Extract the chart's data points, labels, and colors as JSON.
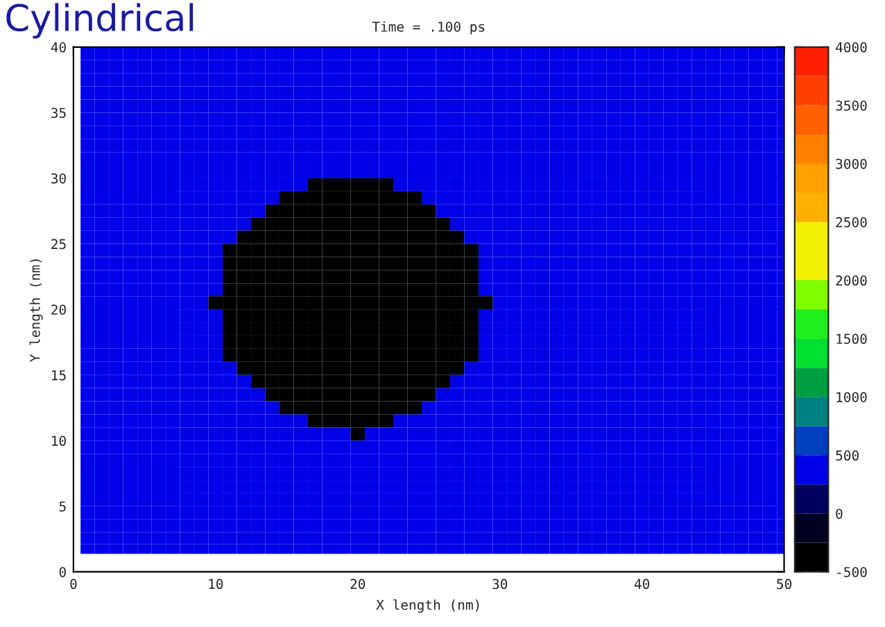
{
  "chart_data": {
    "type": "heatmap",
    "title": "Time = .100 ps",
    "xlabel": "X length (nm)",
    "ylabel": "Y length (nm)",
    "annotations": [
      "Cylindrical"
    ],
    "xlim": [
      0,
      50
    ],
    "ylim": [
      0,
      40
    ],
    "xticks": [
      0,
      10,
      20,
      30,
      40,
      50
    ],
    "yticks": [
      0,
      5,
      10,
      15,
      20,
      25,
      30,
      35,
      40
    ],
    "clim": [
      -500,
      4000
    ],
    "cticks": [
      -500,
      0,
      500,
      1000,
      1500,
      2000,
      2500,
      3000,
      3500,
      4000
    ],
    "colors": [
      "#000000",
      "#000020",
      "#000060",
      "#0000e8",
      "#0040c0",
      "#008080",
      "#00a040",
      "#00e030",
      "#20f020",
      "#80ff00",
      "#f0f000",
      "#f0f000",
      "#ffb000",
      "#ffa000",
      "#ff8000",
      "#ff6000",
      "#ff4000",
      "#ff2000"
    ],
    "x": [
      1,
      2,
      3,
      4,
      5,
      6,
      7,
      8,
      9,
      10,
      11,
      12,
      13,
      14,
      15,
      16,
      17,
      18,
      19,
      20,
      21,
      22,
      23,
      24,
      25,
      26,
      27,
      28,
      29,
      30,
      31,
      32,
      33,
      34,
      35,
      36,
      37,
      38,
      39,
      40,
      41,
      42,
      43,
      44,
      45,
      46,
      47,
      48,
      49,
      50
    ],
    "y": [
      39.5,
      38.5,
      37.5,
      36.5,
      35.5,
      34.5,
      33.5,
      32.5,
      31.5,
      30.5,
      29.5,
      28.5,
      27.5,
      26.5,
      25.5,
      24.5,
      23.5,
      22.5,
      21.5,
      20.5,
      19.5,
      18.5,
      17.5,
      16.5,
      15.5,
      14.5,
      13.5,
      12.5,
      11.5,
      10.5,
      9.5,
      8.5,
      7.5,
      6.5,
      5.5,
      4.5,
      3.5,
      2.5,
      1.75
    ],
    "cells": [
      [
        400,
        400,
        400,
        400,
        400,
        400,
        400,
        400,
        400,
        400,
        400,
        400,
        400,
        400,
        400,
        400,
        400,
        400,
        400,
        400,
        400,
        400,
        400,
        400,
        400,
        400,
        400,
        400,
        400,
        400,
        400,
        400,
        400,
        400,
        400,
        400,
        400,
        400,
        400,
        400,
        400,
        400,
        400,
        400,
        400,
        400,
        400,
        400,
        400,
        400
      ],
      [
        400,
        400,
        400,
        400,
        400,
        400,
        400,
        400,
        400,
        400,
        400,
        400,
        400,
        400,
        400,
        400,
        400,
        400,
        400,
        400,
        400,
        400,
        400,
        400,
        400,
        400,
        400,
        400,
        400,
        400,
        400,
        400,
        400,
        400,
        400,
        400,
        400,
        400,
        400,
        400,
        400,
        400,
        400,
        400,
        400,
        400,
        400,
        400,
        400,
        400
      ],
      [
        400,
        400,
        400,
        400,
        400,
        400,
        400,
        400,
        400,
        400,
        400,
        400,
        400,
        400,
        400,
        400,
        400,
        400,
        400,
        400,
        400,
        400,
        400,
        400,
        400,
        400,
        400,
        400,
        400,
        400,
        400,
        400,
        400,
        400,
        400,
        400,
        400,
        400,
        400,
        400,
        400,
        400,
        400,
        400,
        400,
        400,
        400,
        400,
        400,
        400
      ],
      [
        400,
        400,
        400,
        400,
        400,
        400,
        400,
        400,
        400,
        400,
        400,
        400,
        400,
        400,
        400,
        400,
        400,
        400,
        400,
        400,
        400,
        400,
        400,
        400,
        400,
        400,
        400,
        400,
        400,
        400,
        400,
        400,
        400,
        400,
        400,
        400,
        400,
        400,
        400,
        400,
        400,
        400,
        400,
        400,
        400,
        400,
        400,
        400,
        400,
        400
      ],
      [
        400,
        400,
        400,
        400,
        400,
        400,
        400,
        400,
        400,
        400,
        400,
        400,
        400,
        400,
        400,
        400,
        400,
        400,
        400,
        400,
        400,
        400,
        400,
        400,
        400,
        400,
        400,
        400,
        400,
        400,
        400,
        400,
        400,
        400,
        400,
        400,
        400,
        400,
        400,
        400,
        400,
        400,
        400,
        400,
        400,
        400,
        400,
        400,
        400,
        400
      ],
      [
        400,
        400,
        400,
        400,
        400,
        400,
        400,
        400,
        400,
        400,
        400,
        400,
        400,
        400,
        400,
        400,
        400,
        400,
        400,
        400,
        400,
        400,
        400,
        400,
        400,
        400,
        400,
        400,
        400,
        400,
        400,
        400,
        400,
        400,
        400,
        400,
        400,
        400,
        400,
        400,
        400,
        400,
        400,
        400,
        400,
        400,
        400,
        400,
        400,
        400
      ],
      [
        400,
        400,
        400,
        400,
        400,
        400,
        400,
        400,
        400,
        400,
        400,
        400,
        400,
        400,
        400,
        400,
        400,
        400,
        400,
        400,
        400,
        400,
        400,
        400,
        400,
        400,
        400,
        400,
        400,
        400,
        400,
        400,
        400,
        400,
        400,
        400,
        400,
        400,
        400,
        400,
        400,
        400,
        400,
        400,
        400,
        400,
        400,
        400,
        400,
        400
      ],
      [
        400,
        400,
        400,
        400,
        400,
        400,
        400,
        400,
        400,
        400,
        400,
        400,
        400,
        400,
        400,
        400,
        400,
        400,
        400,
        400,
        400,
        400,
        400,
        400,
        400,
        400,
        400,
        400,
        400,
        400,
        400,
        400,
        400,
        400,
        400,
        400,
        400,
        400,
        400,
        400,
        400,
        400,
        400,
        400,
        400,
        400,
        400,
        400,
        400,
        400
      ],
      [
        400,
        400,
        400,
        400,
        400,
        400,
        400,
        400,
        400,
        400,
        400,
        400,
        400,
        400,
        400,
        400,
        400,
        400,
        400,
        400,
        400,
        400,
        400,
        400,
        400,
        400,
        400,
        400,
        400,
        400,
        400,
        400,
        400,
        400,
        400,
        400,
        400,
        400,
        400,
        400,
        400,
        400,
        400,
        400,
        400,
        400,
        400,
        400,
        400,
        400
      ],
      [
        400,
        400,
        400,
        400,
        400,
        400,
        400,
        400,
        400,
        400,
        400,
        400,
        400,
        400,
        400,
        400,
        400,
        400,
        400,
        400,
        400,
        400,
        400,
        400,
        400,
        400,
        400,
        400,
        400,
        400,
        400,
        400,
        400,
        400,
        400,
        400,
        400,
        400,
        400,
        400,
        400,
        400,
        400,
        400,
        400,
        400,
        400,
        400,
        400,
        400
      ],
      [
        400,
        400,
        400,
        400,
        400,
        400,
        400,
        400,
        400,
        400,
        400,
        400,
        400,
        400,
        400,
        400,
        -500,
        -500,
        -500,
        -500,
        -500,
        -500,
        400,
        400,
        400,
        400,
        400,
        400,
        400,
        400,
        400,
        400,
        400,
        400,
        400,
        400,
        400,
        400,
        400,
        400,
        400,
        400,
        400,
        400,
        400,
        400,
        400,
        400,
        400,
        400
      ],
      [
        400,
        400,
        400,
        400,
        400,
        400,
        400,
        400,
        400,
        400,
        400,
        400,
        400,
        400,
        -500,
        -500,
        -500,
        -500,
        -500,
        -500,
        -500,
        -500,
        -500,
        -500,
        400,
        400,
        400,
        400,
        400,
        400,
        400,
        400,
        400,
        400,
        400,
        400,
        400,
        400,
        400,
        400,
        400,
        400,
        400,
        400,
        400,
        400,
        400,
        400,
        400,
        400
      ],
      [
        400,
        400,
        400,
        400,
        400,
        400,
        400,
        400,
        400,
        400,
        400,
        400,
        400,
        -500,
        -500,
        -500,
        -500,
        -500,
        -500,
        -500,
        -500,
        -500,
        -500,
        -500,
        -500,
        400,
        400,
        400,
        400,
        400,
        400,
        400,
        400,
        400,
        400,
        400,
        400,
        400,
        400,
        400,
        400,
        400,
        400,
        400,
        400,
        400,
        400,
        400,
        400,
        400
      ],
      [
        400,
        400,
        400,
        400,
        400,
        400,
        400,
        400,
        400,
        400,
        400,
        400,
        -500,
        -500,
        -500,
        -500,
        -500,
        -500,
        -500,
        -500,
        -500,
        -500,
        -500,
        -500,
        -500,
        -500,
        400,
        400,
        400,
        400,
        400,
        400,
        400,
        400,
        400,
        400,
        400,
        400,
        400,
        400,
        400,
        400,
        400,
        400,
        400,
        400,
        400,
        400,
        400,
        400
      ],
      [
        400,
        400,
        400,
        400,
        400,
        400,
        400,
        400,
        400,
        400,
        400,
        -500,
        -500,
        -500,
        -500,
        -500,
        -500,
        -500,
        -500,
        -500,
        -500,
        -500,
        -500,
        -500,
        -500,
        -500,
        -500,
        400,
        400,
        400,
        400,
        400,
        400,
        400,
        400,
        400,
        400,
        400,
        400,
        400,
        400,
        400,
        400,
        400,
        400,
        400,
        400,
        400,
        400,
        400
      ],
      [
        400,
        400,
        400,
        400,
        400,
        400,
        400,
        400,
        400,
        400,
        -500,
        -500,
        -500,
        -500,
        -500,
        -500,
        -500,
        -500,
        -500,
        -500,
        -500,
        -500,
        -500,
        -500,
        -500,
        -500,
        -500,
        -500,
        400,
        400,
        400,
        400,
        400,
        400,
        400,
        400,
        400,
        400,
        400,
        400,
        400,
        400,
        400,
        400,
        400,
        400,
        400,
        400,
        400,
        400
      ],
      [
        400,
        400,
        400,
        400,
        400,
        400,
        400,
        400,
        400,
        400,
        -500,
        -500,
        -500,
        -500,
        -500,
        -500,
        -500,
        -500,
        -500,
        -500,
        -500,
        -500,
        -500,
        -500,
        -500,
        -500,
        -500,
        -500,
        400,
        400,
        400,
        400,
        400,
        400,
        400,
        400,
        400,
        400,
        400,
        400,
        400,
        400,
        400,
        400,
        400,
        400,
        400,
        400,
        400,
        400
      ],
      [
        400,
        400,
        400,
        400,
        400,
        400,
        400,
        400,
        400,
        400,
        -500,
        -500,
        -500,
        -500,
        -500,
        -500,
        -500,
        -500,
        -500,
        -500,
        -500,
        -500,
        -500,
        -500,
        -500,
        -500,
        -500,
        -500,
        400,
        400,
        400,
        400,
        400,
        400,
        400,
        400,
        400,
        400,
        400,
        400,
        400,
        400,
        400,
        400,
        400,
        400,
        400,
        400,
        400,
        400
      ],
      [
        400,
        400,
        400,
        400,
        400,
        400,
        400,
        400,
        400,
        400,
        -500,
        -500,
        -500,
        -500,
        -500,
        -500,
        -500,
        -500,
        -500,
        -500,
        -500,
        -500,
        -500,
        -500,
        -500,
        -500,
        -500,
        -500,
        400,
        400,
        400,
        400,
        400,
        400,
        400,
        400,
        400,
        400,
        400,
        400,
        400,
        400,
        400,
        400,
        400,
        400,
        400,
        400,
        400,
        400
      ],
      [
        400,
        400,
        400,
        400,
        400,
        400,
        400,
        400,
        400,
        -500,
        -500,
        -500,
        -500,
        -500,
        -500,
        -500,
        -500,
        -500,
        -500,
        -500,
        -500,
        -500,
        -500,
        -500,
        -500,
        -500,
        -500,
        -500,
        -500,
        400,
        400,
        400,
        400,
        400,
        400,
        400,
        400,
        400,
        400,
        400,
        400,
        400,
        400,
        400,
        400,
        400,
        400,
        400,
        400,
        400
      ],
      [
        400,
        400,
        400,
        400,
        400,
        400,
        400,
        400,
        400,
        400,
        -500,
        -500,
        -500,
        -500,
        -500,
        -500,
        -500,
        -500,
        -500,
        -500,
        -500,
        -500,
        -500,
        -500,
        -500,
        -500,
        -500,
        -500,
        400,
        400,
        400,
        400,
        400,
        400,
        400,
        400,
        400,
        400,
        400,
        400,
        400,
        400,
        400,
        400,
        400,
        400,
        400,
        400,
        400,
        400
      ],
      [
        400,
        400,
        400,
        400,
        400,
        400,
        400,
        400,
        400,
        400,
        -500,
        -500,
        -500,
        -500,
        -500,
        -500,
        -500,
        -500,
        -500,
        -500,
        -500,
        -500,
        -500,
        -500,
        -500,
        -500,
        -500,
        -500,
        400,
        400,
        400,
        400,
        400,
        400,
        400,
        400,
        400,
        400,
        400,
        400,
        400,
        400,
        400,
        400,
        400,
        400,
        400,
        400,
        400,
        400
      ],
      [
        400,
        400,
        400,
        400,
        400,
        400,
        400,
        400,
        400,
        400,
        -500,
        -500,
        -500,
        -500,
        -500,
        -500,
        -500,
        -500,
        -500,
        -500,
        -500,
        -500,
        -500,
        -500,
        -500,
        -500,
        -500,
        -500,
        400,
        400,
        400,
        400,
        400,
        400,
        400,
        400,
        400,
        400,
        400,
        400,
        400,
        400,
        400,
        400,
        400,
        400,
        400,
        400,
        400,
        400
      ],
      [
        400,
        400,
        400,
        400,
        400,
        400,
        400,
        400,
        400,
        400,
        -500,
        -500,
        -500,
        -500,
        -500,
        -500,
        -500,
        -500,
        -500,
        -500,
        -500,
        -500,
        -500,
        -500,
        -500,
        -500,
        -500,
        -500,
        400,
        400,
        400,
        400,
        400,
        400,
        400,
        400,
        400,
        400,
        400,
        400,
        400,
        400,
        400,
        400,
        400,
        400,
        400,
        400,
        400,
        400
      ],
      [
        400,
        400,
        400,
        400,
        400,
        400,
        400,
        400,
        400,
        400,
        400,
        -500,
        -500,
        -500,
        -500,
        -500,
        -500,
        -500,
        -500,
        -500,
        -500,
        -500,
        -500,
        -500,
        -500,
        -500,
        -500,
        400,
        400,
        400,
        400,
        400,
        400,
        400,
        400,
        400,
        400,
        400,
        400,
        400,
        400,
        400,
        400,
        400,
        400,
        400,
        400,
        400,
        400,
        400
      ],
      [
        400,
        400,
        400,
        400,
        400,
        400,
        400,
        400,
        400,
        400,
        400,
        400,
        -500,
        -500,
        -500,
        -500,
        -500,
        -500,
        -500,
        -500,
        -500,
        -500,
        -500,
        -500,
        -500,
        -500,
        400,
        400,
        400,
        400,
        400,
        400,
        400,
        400,
        400,
        400,
        400,
        400,
        400,
        400,
        400,
        400,
        400,
        400,
        400,
        400,
        400,
        400,
        400,
        400
      ],
      [
        400,
        400,
        400,
        400,
        400,
        400,
        400,
        400,
        400,
        400,
        400,
        400,
        400,
        -500,
        -500,
        -500,
        -500,
        -500,
        -500,
        -500,
        -500,
        -500,
        -500,
        -500,
        -500,
        400,
        400,
        400,
        400,
        400,
        400,
        400,
        400,
        400,
        400,
        400,
        400,
        400,
        400,
        400,
        400,
        400,
        400,
        400,
        400,
        400,
        400,
        400,
        400,
        400
      ],
      [
        400,
        400,
        400,
        400,
        400,
        400,
        400,
        400,
        400,
        400,
        400,
        400,
        400,
        400,
        -500,
        -500,
        -500,
        -500,
        -500,
        -500,
        -500,
        -500,
        -500,
        -500,
        400,
        400,
        400,
        400,
        400,
        400,
        400,
        400,
        400,
        400,
        400,
        400,
        400,
        400,
        400,
        400,
        400,
        400,
        400,
        400,
        400,
        400,
        400,
        400,
        400,
        400
      ],
      [
        400,
        400,
        400,
        400,
        400,
        400,
        400,
        400,
        400,
        400,
        400,
        400,
        400,
        400,
        400,
        400,
        -500,
        -500,
        -500,
        -500,
        -500,
        -500,
        400,
        400,
        400,
        400,
        400,
        400,
        400,
        400,
        400,
        400,
        400,
        400,
        400,
        400,
        400,
        400,
        400,
        400,
        400,
        400,
        400,
        400,
        400,
        400,
        400,
        400,
        400,
        400
      ],
      [
        400,
        400,
        400,
        400,
        400,
        400,
        400,
        400,
        400,
        400,
        400,
        400,
        400,
        400,
        400,
        400,
        400,
        400,
        400,
        -500,
        400,
        400,
        400,
        400,
        400,
        400,
        400,
        400,
        400,
        400,
        400,
        400,
        400,
        400,
        400,
        400,
        400,
        400,
        400,
        400,
        400,
        400,
        400,
        400,
        400,
        400,
        400,
        400,
        400,
        400
      ],
      [
        400,
        400,
        400,
        400,
        400,
        400,
        400,
        400,
        400,
        400,
        400,
        400,
        400,
        400,
        400,
        400,
        400,
        400,
        400,
        400,
        400,
        400,
        400,
        400,
        400,
        400,
        400,
        400,
        400,
        400,
        400,
        400,
        400,
        400,
        400,
        400,
        400,
        400,
        400,
        400,
        400,
        400,
        400,
        400,
        400,
        400,
        400,
        400,
        400,
        400
      ],
      [
        400,
        400,
        400,
        400,
        400,
        400,
        400,
        400,
        400,
        400,
        400,
        400,
        400,
        400,
        400,
        400,
        400,
        400,
        400,
        400,
        400,
        400,
        400,
        400,
        400,
        400,
        400,
        400,
        400,
        400,
        400,
        400,
        400,
        400,
        400,
        400,
        400,
        400,
        400,
        400,
        400,
        400,
        400,
        400,
        400,
        400,
        400,
        400,
        400,
        400
      ],
      [
        400,
        400,
        400,
        400,
        400,
        400,
        400,
        400,
        400,
        400,
        400,
        400,
        400,
        400,
        400,
        400,
        400,
        400,
        400,
        400,
        400,
        400,
        400,
        400,
        400,
        400,
        400,
        400,
        400,
        400,
        400,
        400,
        400,
        400,
        400,
        400,
        400,
        400,
        400,
        400,
        400,
        400,
        400,
        400,
        400,
        400,
        400,
        400,
        400,
        400
      ],
      [
        400,
        400,
        400,
        400,
        400,
        400,
        400,
        400,
        400,
        400,
        400,
        400,
        400,
        400,
        400,
        400,
        400,
        400,
        400,
        400,
        400,
        400,
        400,
        400,
        400,
        400,
        400,
        400,
        400,
        400,
        400,
        400,
        400,
        400,
        400,
        400,
        400,
        400,
        400,
        400,
        400,
        400,
        400,
        400,
        400,
        400,
        400,
        400,
        400,
        400
      ],
      [
        400,
        400,
        400,
        400,
        400,
        400,
        400,
        400,
        400,
        400,
        400,
        400,
        400,
        400,
        400,
        400,
        400,
        400,
        400,
        400,
        400,
        400,
        400,
        400,
        400,
        400,
        400,
        400,
        400,
        400,
        400,
        400,
        400,
        400,
        400,
        400,
        400,
        400,
        400,
        400,
        400,
        400,
        400,
        400,
        400,
        400,
        400,
        400,
        400,
        400
      ],
      [
        400,
        400,
        400,
        400,
        400,
        400,
        400,
        400,
        400,
        400,
        400,
        400,
        400,
        400,
        400,
        400,
        400,
        400,
        400,
        400,
        400,
        400,
        400,
        400,
        400,
        400,
        400,
        400,
        400,
        400,
        400,
        400,
        400,
        400,
        400,
        400,
        400,
        400,
        400,
        400,
        400,
        400,
        400,
        400,
        400,
        400,
        400,
        400,
        400,
        400
      ],
      [
        400,
        400,
        400,
        400,
        400,
        400,
        400,
        400,
        400,
        400,
        400,
        400,
        400,
        400,
        400,
        400,
        400,
        400,
        400,
        400,
        400,
        400,
        400,
        400,
        400,
        400,
        400,
        400,
        400,
        400,
        400,
        400,
        400,
        400,
        400,
        400,
        400,
        400,
        400,
        400,
        400,
        400,
        400,
        400,
        400,
        400,
        400,
        400,
        400,
        400
      ],
      [
        400,
        400,
        400,
        400,
        400,
        400,
        400,
        400,
        400,
        400,
        400,
        400,
        400,
        400,
        400,
        400,
        400,
        400,
        400,
        400,
        400,
        400,
        400,
        400,
        400,
        400,
        400,
        400,
        400,
        400,
        400,
        400,
        400,
        400,
        400,
        400,
        400,
        400,
        400,
        400,
        400,
        400,
        400,
        400,
        400,
        400,
        400,
        400,
        400,
        400
      ],
      [
        400,
        400,
        400,
        400,
        400,
        400,
        400,
        400,
        400,
        400,
        400,
        400,
        400,
        400,
        400,
        400,
        400,
        400,
        400,
        400,
        400,
        400,
        400,
        400,
        400,
        400,
        400,
        400,
        400,
        400,
        400,
        400,
        400,
        400,
        400,
        400,
        400,
        400,
        400,
        400,
        400,
        400,
        400,
        400,
        400,
        400,
        400,
        400,
        400,
        400
      ]
    ]
  }
}
